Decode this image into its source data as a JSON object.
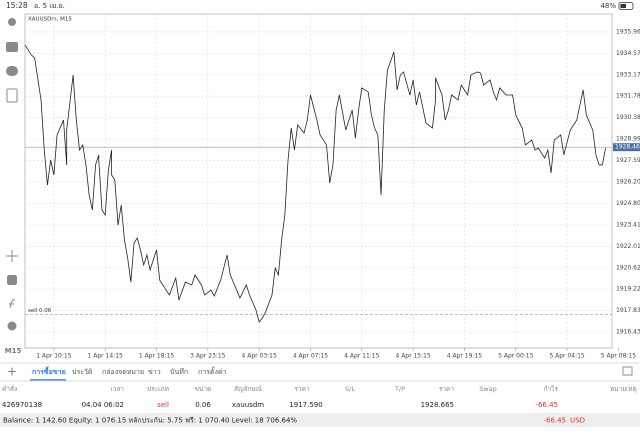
{
  "status_bar": {
    "time": "15:28",
    "date": "อ. 5 เม.ย.",
    "battery": "48%"
  },
  "toolbar": {
    "timeframe": "M15"
  },
  "chart_data": {
    "type": "line",
    "symbol": "XAUUSDm, M15",
    "color": "#222222",
    "grid": true,
    "x": [
      0,
      2,
      3,
      5,
      6,
      7,
      8,
      9,
      10,
      12,
      13,
      13,
      15,
      16,
      17,
      18,
      19,
      20,
      21,
      22,
      23,
      23,
      24,
      25,
      26,
      27,
      27,
      28,
      29,
      30,
      31,
      32,
      33,
      34,
      35,
      36,
      37,
      38,
      39,
      41,
      42,
      44,
      45,
      47,
      48,
      50,
      52,
      53,
      55,
      56,
      58,
      59,
      61,
      63,
      64,
      66,
      67,
      69,
      70,
      72,
      73,
      74,
      75,
      77,
      78,
      79,
      80,
      81,
      82,
      83,
      84,
      85,
      87,
      88,
      89,
      91,
      92,
      94,
      95,
      96,
      97,
      98,
      100,
      102,
      103,
      104,
      105,
      107,
      108,
      109,
      110,
      111,
      112,
      113,
      115,
      116,
      117,
      118,
      120,
      121,
      122,
      123,
      125,
      127,
      128,
      128,
      130,
      131,
      132,
      133,
      135,
      136,
      138,
      139,
      141,
      142,
      143,
      145,
      146,
      147,
      148,
      150,
      152,
      153,
      155,
      156,
      158,
      159,
      160,
      162,
      163,
      164,
      165,
      167,
      168,
      169,
      170,
      172,
      173,
      174,
      175,
      177,
      178,
      179,
      180,
      181
    ],
    "values": [
      1935.11,
      1934.46,
      1934.27,
      1931.54,
      1928.28,
      1926.0,
      1927.63,
      1926.66,
      1929.26,
      1930.23,
      1927.31,
      1929.58,
      1933.16,
      1930.23,
      1928.28,
      1928.61,
      1927.31,
      1925.35,
      1924.38,
      1927.31,
      1927.96,
      1927.63,
      1924.38,
      1924.05,
      1926.98,
      1928.28,
      1926.66,
      1926.33,
      1923.4,
      1924.7,
      1922.43,
      1921.26,
      1919.69,
      1922.23,
      1922.56,
      1921.78,
      1920.8,
      1921.45,
      1920.48,
      1921.78,
      1919.82,
      1919.17,
      1918.85,
      1919.95,
      1918.52,
      1919.69,
      1919.5,
      1920.15,
      1919.5,
      1918.85,
      1919.17,
      1918.78,
      1919.82,
      1921.45,
      1920.15,
      1919.17,
      1918.65,
      1919.5,
      1918.85,
      1917.87,
      1917.09,
      1917.35,
      1917.74,
      1918.85,
      1920.61,
      1920.15,
      1922.43,
      1924.05,
      1927.63,
      1929.71,
      1928.28,
      1929.91,
      1929.39,
      1930.23,
      1931.86,
      1930.23,
      1929.26,
      1928.61,
      1926.14,
      1927.31,
      1930.88,
      1931.86,
      1929.58,
      1930.88,
      1929.06,
      1930.88,
      1932.32,
      1932.06,
      1930.56,
      1929.71,
      1929.26,
      1925.35,
      1930.88,
      1933.49,
      1934.66,
      1932.19,
      1933.16,
      1933.36,
      1931.86,
      1932.84,
      1931.21,
      1932.06,
      1930.04,
      1929.71,
      1931.54,
      1932.97,
      1931.86,
      1930.23,
      1930.88,
      1931.86,
      1931.54,
      1932.51,
      1931.86,
      1933.16,
      1933.36,
      1933.29,
      1932.51,
      1932.84,
      1932.06,
      1931.54,
      1932.32,
      1931.86,
      1931.86,
      1930.56,
      1929.71,
      1928.61,
      1928.93,
      1928.28,
      1928.41,
      1927.76,
      1928.28,
      1926.79,
      1928.93,
      1929.26,
      1927.96,
      1928.8,
      1929.58,
      1930.23,
      1931.21,
      1932.19,
      1930.56,
      1929.58,
      1927.96,
      1927.31,
      1927.31,
      1928.41
    ],
    "xlim": [
      0,
      183
    ],
    "xticks": [
      {
        "value": 9,
        "label": "1 Apr 10:15"
      },
      {
        "value": 25,
        "label": "1 Apr 14:15"
      },
      {
        "value": 41,
        "label": "1 Apr 18:15"
      },
      {
        "value": 57,
        "label": "3 Apr 23:15"
      },
      {
        "value": 73,
        "label": "4 Apr 03:15"
      },
      {
        "value": 89,
        "label": "4 Apr 07:15"
      },
      {
        "value": 105,
        "label": "4 Apr 11:15"
      },
      {
        "value": 121,
        "label": "4 Apr 15:15"
      },
      {
        "value": 137,
        "label": "4 Apr 19:15"
      },
      {
        "value": 153,
        "label": "5 Apr 00:15"
      },
      {
        "value": 169,
        "label": "5 Apr 04:15"
      },
      {
        "value": 185,
        "label": "5 Apr 08:15"
      }
    ],
    "ylim": [
      1915.4,
      1937.13
    ],
    "yticks": [
      1916.435,
      {
        "value": 1917.83,
        "label": "1917.830"
      },
      1919.225,
      {
        "value": 1920.62,
        "label": "1920.620"
      },
      1922.015,
      1923.41,
      1924.805,
      {
        "value": 1926.2,
        "label": "1926.200"
      },
      1927.595,
      {
        "value": 1928.99,
        "label": "1928.990"
      },
      1930.385,
      {
        "value": 1931.78,
        "label": "1931.780"
      },
      1933.175,
      {
        "value": 1934.57,
        "label": "1934.570"
      },
      1935.965
    ],
    "current_price": 1928.465,
    "order_line": {
      "label": "sell 0.06",
      "value": 1917.59
    }
  },
  "tabs": [
    "การซื้อขาย",
    "ประวัติ",
    "กล่องจดหมาย",
    "ข่าว",
    "บันทึก",
    "การตั้งค่า"
  ],
  "table": {
    "headers": [
      "คำสั่ง",
      "เวลา",
      "ประเภท",
      "ขนาด",
      "สัญลักษณ์",
      "ราคา",
      "S/L",
      "T/P",
      "ราคา",
      "Swap",
      "กำไร",
      "หมายเหตุ"
    ],
    "rows": [
      [
        "426970138",
        "04.04 06:02",
        "sell",
        "0.06",
        "xauusdm",
        "1917.590",
        "1928.665",
        "-66.45"
      ]
    ]
  },
  "footer": {
    "summary": "Balance: 1 142.60 Equity: 1 076.15 หลักประกัน: 5.75 ฟรี: 1 070.40 Level: 18 706.64%",
    "profit": "-66.45",
    "currency": "USD"
  }
}
